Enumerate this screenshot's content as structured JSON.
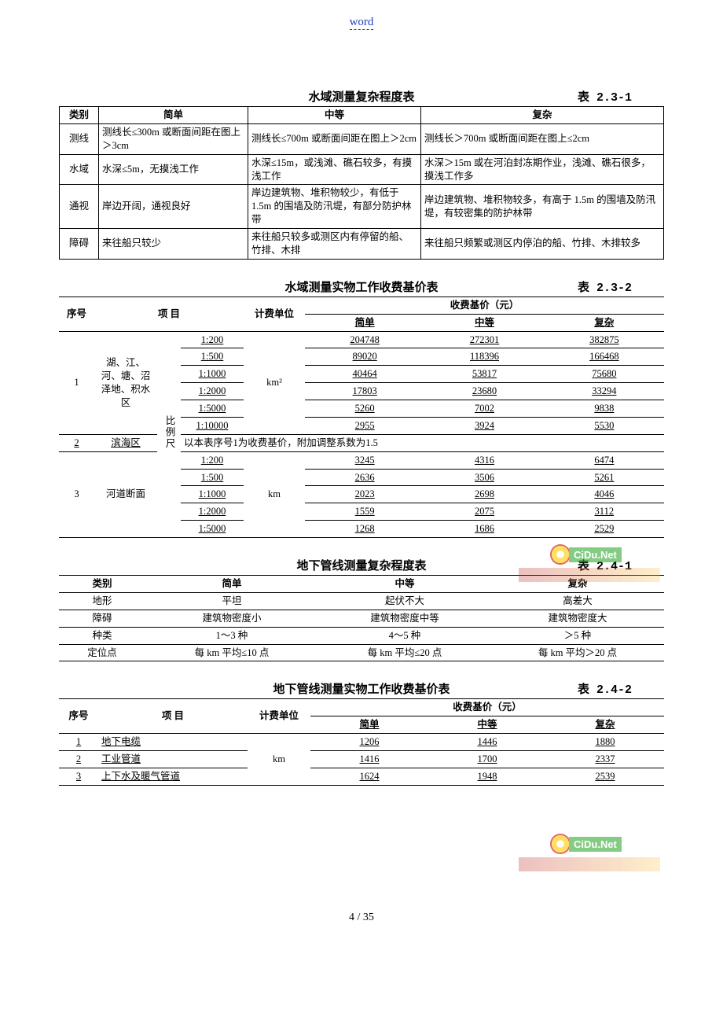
{
  "header": {
    "label": "word"
  },
  "footer": {
    "page": "4 / 35"
  },
  "t231": {
    "title": "水域测量复杂程度表",
    "num": "表 2.3-1",
    "cols": [
      "类别",
      "简单",
      "中等",
      "复杂"
    ],
    "rows": [
      {
        "cat": "测线",
        "a": "测线长≤300m 或断面间距在图上＞3cm",
        "b": "测线长≤700m 或断面间距在图上＞2cm",
        "c": "测线长＞700m 或断面间距在图上≤2cm"
      },
      {
        "cat": "水域",
        "a": "水深≤5m，无摸浅工作",
        "b": "水深≤15m，或浅滩、礁石较多，有摸浅工作",
        "c": "水深＞15m 或在河泊封冻期作业，浅滩、礁石很多，摸浅工作多"
      },
      {
        "cat": "通视",
        "a": "岸边开阔，通视良好",
        "b": "岸边建筑物、堆积物较少，有低于 1.5m 的围墙及防汛堤，有部分防护林带",
        "c": "岸边建筑物、堆积物较多，有高于 1.5m 的围墙及防汛堤，有较密集的防护林带"
      },
      {
        "cat": "障碍",
        "a": "来往船只较少",
        "b": "来往船只较多或测区内有停留的船、竹排、木排",
        "c": "来往船只频繁或测区内停泊的船、竹排、木排较多"
      }
    ]
  },
  "t232": {
    "title": "水域测量实物工作收费基价表",
    "num": "表 2.3-2",
    "head": {
      "seq": "序号",
      "item": "项 目",
      "unit": "计费单位",
      "pricegroup": "收费基价（元）",
      "simple": "简单",
      "mid": "中等",
      "complex": "复杂",
      "scale_label": "比例尺"
    },
    "group1": {
      "seq": "1",
      "name": "湖、江、河、塘、沼泽地、积水区",
      "unit": "km²",
      "rows": [
        {
          "scale": "1:200",
          "a": "204748",
          "b": "272301",
          "c": "382875"
        },
        {
          "scale": "1:500",
          "a": "89020",
          "b": "118396",
          "c": "166468"
        },
        {
          "scale": "1:1000",
          "a": "40464",
          "b": "53817",
          "c": "75680"
        },
        {
          "scale": "1:2000",
          "a": "17803",
          "b": "23680",
          "c": "33294"
        },
        {
          "scale": "1:5000",
          "a": "5260",
          "b": "7002",
          "c": "9838"
        },
        {
          "scale": "1:10000",
          "a": "2955",
          "b": "3924",
          "c": "5530"
        }
      ]
    },
    "group2": {
      "seq": "2",
      "name": "滨海区",
      "note": "以本表序号1为收费基价，附加调整系数为1.5"
    },
    "group3": {
      "seq": "3",
      "name": "河道断面",
      "unit": "km",
      "rows": [
        {
          "scale": "1:200",
          "a": "3245",
          "b": "4316",
          "c": "6474"
        },
        {
          "scale": "1:500",
          "a": "2636",
          "b": "3506",
          "c": "5261"
        },
        {
          "scale": "1:1000",
          "a": "2023",
          "b": "2698",
          "c": "4046"
        },
        {
          "scale": "1:2000",
          "a": "1559",
          "b": "2075",
          "c": "3112"
        },
        {
          "scale": "1:5000",
          "a": "1268",
          "b": "1686",
          "c": "2529"
        }
      ]
    }
  },
  "t241": {
    "title": "地下管线测量复杂程度表",
    "num": "表 2.4-1",
    "cols": [
      "类别",
      "简单",
      "中等",
      "复杂"
    ],
    "rows": [
      {
        "cat": "地形",
        "a": "平坦",
        "b": "起伏不大",
        "c": "高差大"
      },
      {
        "cat": "障碍",
        "a": "建筑物密度小",
        "b": "建筑物密度中等",
        "c": "建筑物密度大"
      },
      {
        "cat": "种类",
        "a": "1～3 种",
        "b": "4～5 种",
        "c": "＞5 种"
      },
      {
        "cat": "定位点",
        "a": "每 km 平均≤10 点",
        "b": "每 km 平均≤20 点",
        "c": "每 km 平均＞20 点"
      }
    ]
  },
  "t242": {
    "title": "地下管线测量实物工作收费基价表",
    "num": "表 2.4-2",
    "head": {
      "seq": "序号",
      "item": "项 目",
      "unit": "计费单位",
      "pricegroup": "收费基价（元）",
      "simple": "简单",
      "mid": "中等",
      "complex": "复杂"
    },
    "unit": "km",
    "rows": [
      {
        "seq": "1",
        "name": "地下电缆",
        "a": "1206",
        "b": "1446",
        "c": "1880"
      },
      {
        "seq": "2",
        "name": "工业管道",
        "a": "1416",
        "b": "1700",
        "c": "2337"
      },
      {
        "seq": "3",
        "name": "上下水及暖气管道",
        "a": "1624",
        "b": "1948",
        "c": "2539"
      }
    ]
  },
  "watermark": {
    "text": "CiDu.Net"
  },
  "style": {
    "text_color": "#000000",
    "header_color": "#2040c0",
    "background": "#ffffff",
    "font_size_body": 13,
    "font_size_title": 15
  }
}
